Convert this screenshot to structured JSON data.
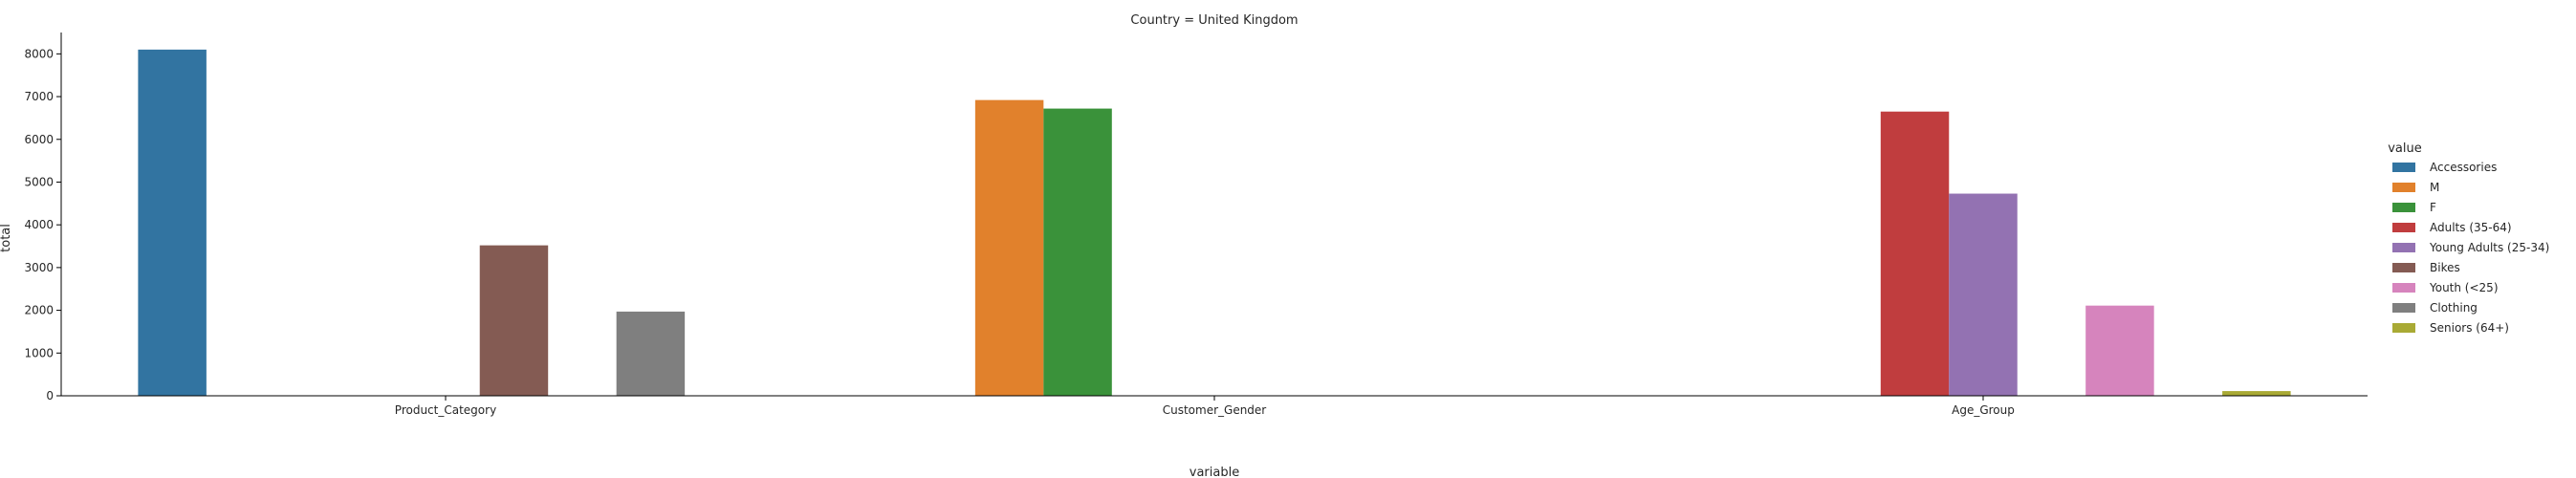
{
  "chart_data": {
    "type": "bar",
    "title": "Country = United Kingdom",
    "xlabel": "variable",
    "ylabel": "total",
    "ylim": [
      0,
      8500
    ],
    "yticks": [
      0,
      1000,
      2000,
      3000,
      4000,
      5000,
      6000,
      7000,
      8000
    ],
    "categories": [
      "Product_Category",
      "Customer_Gender",
      "Age_Group"
    ],
    "grid": false,
    "legend": {
      "title": "value",
      "placement": "right"
    },
    "series": [
      {
        "name": "Accessories",
        "color": "#3274a1",
        "values": [
          8100,
          0,
          0
        ]
      },
      {
        "name": "M",
        "color": "#e1812c",
        "values": [
          0,
          6920,
          0
        ]
      },
      {
        "name": "F",
        "color": "#3a923a",
        "values": [
          0,
          6720,
          0
        ]
      },
      {
        "name": "Adults (35-64)",
        "color": "#c03d3e",
        "values": [
          0,
          0,
          6650
        ]
      },
      {
        "name": "Young Adults (25-34)",
        "color": "#9372b2",
        "values": [
          0,
          0,
          4730
        ]
      },
      {
        "name": "Bikes",
        "color": "#845b53",
        "values": [
          3520,
          0,
          0
        ]
      },
      {
        "name": "Youth (<25)",
        "color": "#d684bd",
        "values": [
          0,
          0,
          2110
        ]
      },
      {
        "name": "Clothing",
        "color": "#7f7f7f",
        "values": [
          1970,
          0,
          0
        ]
      },
      {
        "name": "Seniors (64+)",
        "color": "#a9aa35",
        "values": [
          0,
          0,
          110
        ]
      }
    ]
  }
}
